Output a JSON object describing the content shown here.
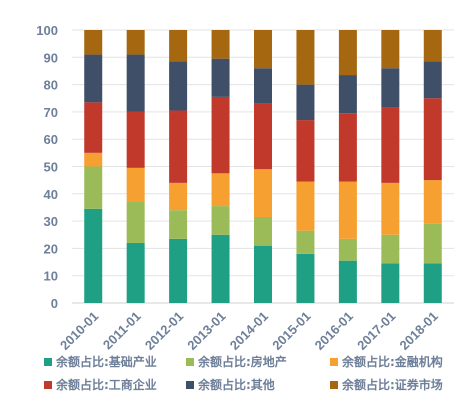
{
  "chart_data": {
    "type": "bar",
    "stacked": true,
    "categories": [
      "2010-01",
      "2011-01",
      "2012-01",
      "2013-01",
      "2014-01",
      "2015-01",
      "2016-01",
      "2017-01",
      "2018-01"
    ],
    "ylim": [
      0,
      100
    ],
    "yticks": [
      0,
      10,
      20,
      30,
      40,
      50,
      60,
      70,
      80,
      90,
      100
    ],
    "grid": true,
    "legend_position": "bottom",
    "series": [
      {
        "name": "余额占比:基础产业",
        "color": "#1fa084",
        "values": [
          34.5,
          22,
          23.5,
          25,
          21,
          18,
          15.5,
          14.5,
          14.5
        ]
      },
      {
        "name": "余额占比:房地产",
        "color": "#9bbb59",
        "values": [
          15.5,
          15,
          10.5,
          10.5,
          10.5,
          8.5,
          8,
          10.5,
          14.5
        ]
      },
      {
        "name": "余额占比:金融机构",
        "color": "#f5a030",
        "values": [
          5,
          12.5,
          10,
          12,
          17.5,
          18,
          21,
          19,
          16
        ]
      },
      {
        "name": "余额占比:工商企业",
        "color": "#c0392b",
        "values": [
          18.5,
          20.5,
          26.5,
          28,
          24,
          22.5,
          25,
          27.5,
          30
        ]
      },
      {
        "name": "余额占比:其他",
        "color": "#3f4f68",
        "values": [
          17.5,
          21,
          18,
          14,
          13,
          13,
          14,
          14.5,
          13.5
        ]
      },
      {
        "name": "余额占比:证券市场",
        "color": "#a56810",
        "values": [
          9,
          9,
          11.5,
          10.5,
          14,
          20,
          16.5,
          14,
          11.5
        ]
      }
    ]
  }
}
